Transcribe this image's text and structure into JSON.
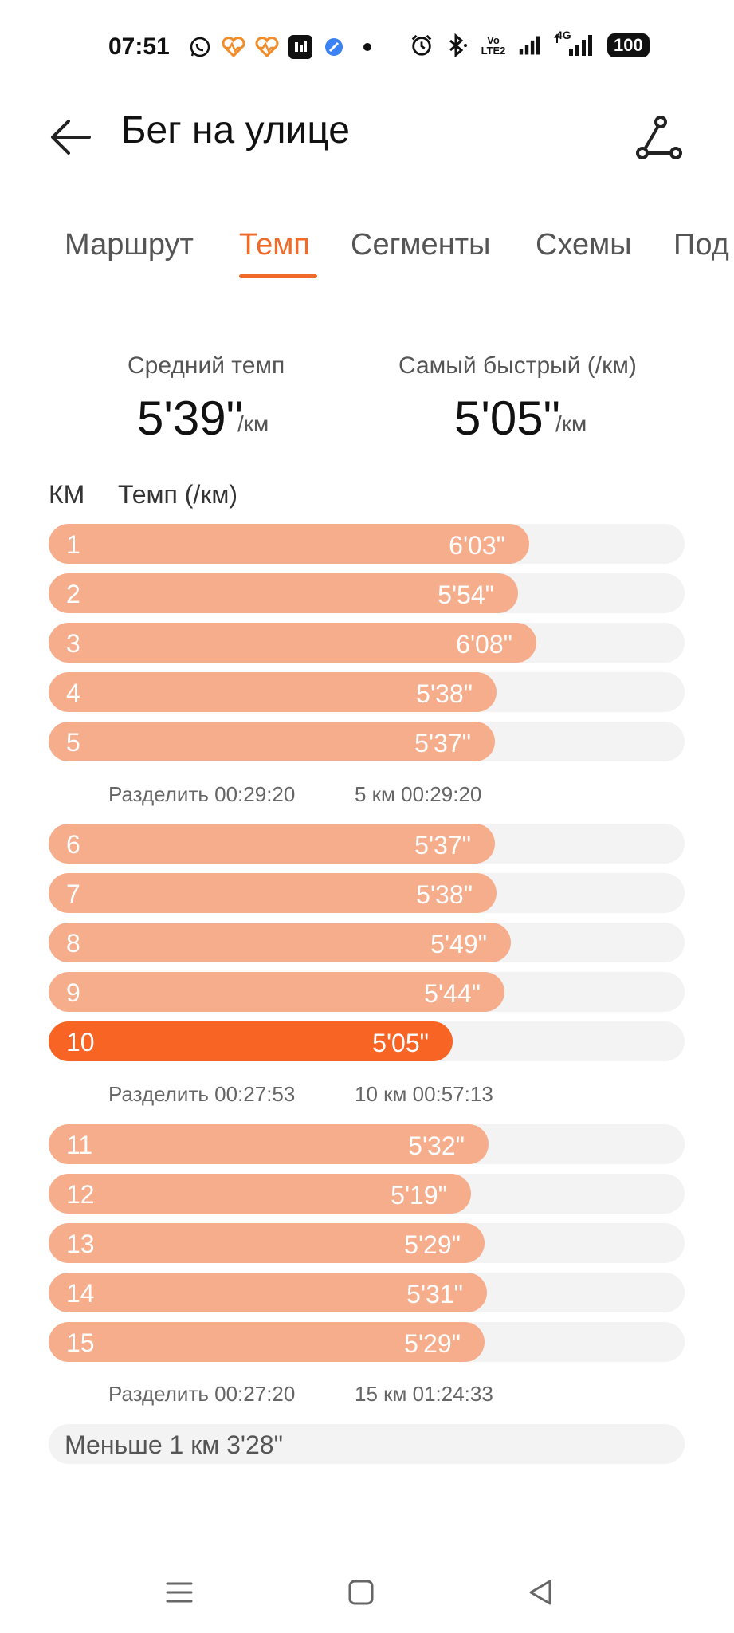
{
  "status_bar": {
    "time": "07:51",
    "left_icons": [
      "whatsapp-icon",
      "heart-rate-icon",
      "heart-rate-icon",
      "app-icon",
      "browser-icon",
      "dot-icon"
    ],
    "right_icons": [
      "alarm-icon",
      "bluetooth-icon",
      "volte-icon",
      "signal-icon",
      "4g-signal-icon"
    ],
    "volte_label": "Vo LTE2",
    "net_label": "4G",
    "battery": "100"
  },
  "header": {
    "title": "Бег на улице",
    "back_icon": "arrow-left-icon",
    "route_icon": "route-share-icon"
  },
  "tabs": [
    {
      "label": "Маршрут",
      "active": false
    },
    {
      "label": "Темп",
      "active": true
    },
    {
      "label": "Сегменты",
      "active": false
    },
    {
      "label": "Схемы",
      "active": false
    },
    {
      "label": "Под",
      "active": false
    }
  ],
  "summary": {
    "avg_label": "Средний темп",
    "avg_value": "5'39\"",
    "avg_unit": "/км",
    "best_label": "Самый быстрый (/км)",
    "best_value": "5'05\"",
    "best_unit": "/км"
  },
  "columns": {
    "km": "КМ",
    "pace": "Темп (/км)"
  },
  "pace_max_seconds": 480,
  "laps": [
    {
      "km": "1",
      "pace": "6'03\"",
      "seconds": 363
    },
    {
      "km": "2",
      "pace": "5'54\"",
      "seconds": 354
    },
    {
      "km": "3",
      "pace": "6'08\"",
      "seconds": 368
    },
    {
      "km": "4",
      "pace": "5'38\"",
      "seconds": 338
    },
    {
      "km": "5",
      "pace": "5'37\"",
      "seconds": 337
    },
    {
      "km": "6",
      "pace": "5'37\"",
      "seconds": 337
    },
    {
      "km": "7",
      "pace": "5'38\"",
      "seconds": 338
    },
    {
      "km": "8",
      "pace": "5'49\"",
      "seconds": 349
    },
    {
      "km": "9",
      "pace": "5'44\"",
      "seconds": 344
    },
    {
      "km": "10",
      "pace": "5'05\"",
      "seconds": 305,
      "fastest": true
    },
    {
      "km": "11",
      "pace": "5'32\"",
      "seconds": 332
    },
    {
      "km": "12",
      "pace": "5'19\"",
      "seconds": 319
    },
    {
      "km": "13",
      "pace": "5'29\"",
      "seconds": 329
    },
    {
      "km": "14",
      "pace": "5'31\"",
      "seconds": 331
    },
    {
      "km": "15",
      "pace": "5'29\"",
      "seconds": 329
    }
  ],
  "splits": [
    {
      "split": "Разделить 00:29:20",
      "total": "5 км 00:29:20"
    },
    {
      "split": "Разделить 00:27:53",
      "total": "10 км 00:57:13"
    },
    {
      "split": "Разделить 00:27:20",
      "total": "15 км 01:24:33"
    }
  ],
  "remainder": "Меньше 1 км 3'28\"",
  "nav": {
    "menu_icon": "menu-icon",
    "home_icon": "home-square-icon",
    "back_icon": "back-triangle-icon"
  },
  "colors": {
    "accent": "#f06a2a",
    "bar": "#f6ad8c",
    "bar_fastest": "#f86424",
    "track": "#f3f3f3"
  }
}
